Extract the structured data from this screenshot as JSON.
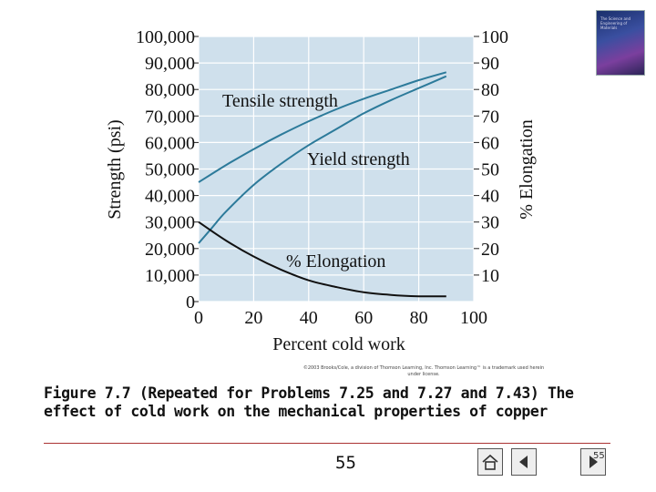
{
  "chart_data": {
    "type": "line",
    "title": "",
    "xlabel": "Percent cold work",
    "ylabel_left": "Strength (psi)",
    "ylabel_right": "% Elongation",
    "x_ticks": [
      "0",
      "20",
      "40",
      "60",
      "80",
      "100"
    ],
    "y_left_ticks": [
      "0",
      "10,000",
      "20,000",
      "30,000",
      "40,000",
      "50,000",
      "60,000",
      "70,000",
      "80,000",
      "90,000",
      "100,000"
    ],
    "y_right_ticks": [
      "10",
      "20",
      "30",
      "40",
      "50",
      "60",
      "70",
      "80",
      "90",
      "100"
    ],
    "xlim": [
      0,
      100
    ],
    "ylim_left": [
      0,
      100000
    ],
    "ylim_right": [
      0,
      100
    ],
    "series": [
      {
        "name": "Tensile strength",
        "axis": "left",
        "color": "#2c7a9a",
        "x": [
          0,
          10,
          20,
          30,
          40,
          50,
          60,
          70,
          80,
          90
        ],
        "y": [
          45000,
          51500,
          57500,
          63000,
          68000,
          72500,
          76500,
          80000,
          83500,
          86500
        ]
      },
      {
        "name": "Yield strength",
        "axis": "left",
        "color": "#2c7a9a",
        "x": [
          0,
          5,
          10,
          20,
          30,
          40,
          50,
          60,
          70,
          80,
          90
        ],
        "y": [
          22000,
          28000,
          34000,
          44000,
          52000,
          59000,
          65000,
          71000,
          76000,
          80500,
          85000
        ]
      },
      {
        "name": "% Elongation",
        "axis": "right",
        "color": "#111111",
        "x": [
          0,
          10,
          20,
          30,
          40,
          50,
          60,
          70,
          80,
          90
        ],
        "y": [
          30,
          23,
          17,
          12,
          8,
          5.5,
          3.5,
          2.5,
          2,
          2
        ]
      }
    ]
  },
  "copyright": "©2003 Brooks/Cole, a division of Thomson Learning, Inc. Thomson Learning™ is a trademark used herein under license.",
  "caption": "Figure 7.7 (Repeated for Problems 7.25 and 7.27 and 7.43) The effect of cold work on the mechanical properties of copper",
  "page_number": "55",
  "corner_number": "55",
  "book_cover_text": "The Science and Engineering of Materials"
}
